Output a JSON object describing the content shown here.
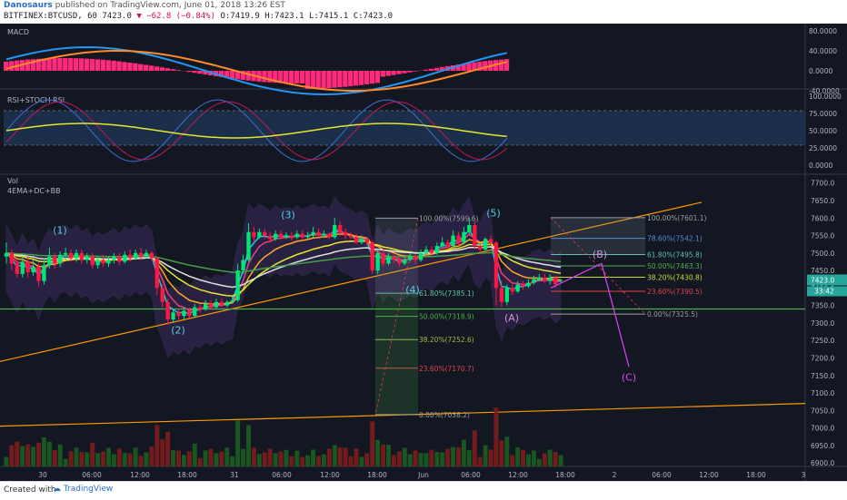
{
  "header": {
    "author": "Danosaurs",
    "published": "published on TradingView.com, June 01, 2018 13:26 EST",
    "symbol": "BITFINEX:BTCUSD, 60",
    "last": "7423.0",
    "change": "▼ −62.8 (−0.84%)",
    "ohlc": "O:7419.9  H:7423.1  L:7415.1  C:7423.0"
  },
  "footer": {
    "created": "Created with",
    "brand": "TradingView"
  },
  "panes": {
    "macd": "MACD",
    "rsi": "RSI+STOCH RSI",
    "vol": "Vol",
    "overlay": "4EMA+DC+BB"
  },
  "chart_data": {
    "type": "line",
    "title": "BITFINEX:BTCUSD, 60",
    "x_ticks": [
      "30",
      "06:00",
      "12:00",
      "18:00",
      "31",
      "06:00",
      "12:00",
      "18:00",
      "Jun",
      "06:00",
      "12:00",
      "18:00",
      "2",
      "06:00",
      "12:00",
      "18:00",
      "3"
    ],
    "price_ticks": [
      "7700.0",
      "7650.0",
      "7600.0",
      "7550.0",
      "7500.0",
      "7450.0",
      "7400.0",
      "7350.0",
      "7300.0",
      "7250.0",
      "7200.0",
      "7150.0",
      "7100.0",
      "7050.0",
      "7000.0",
      "6950.0",
      "6900.0"
    ],
    "price_range": [
      6890,
      7720
    ],
    "macd_ticks": [
      "80.0000",
      "40.0000",
      "0.0000",
      "-40.0000"
    ],
    "rsi_ticks": [
      "100.0000",
      "75.0000",
      "50.0000",
      "25.0000",
      "0.0000"
    ],
    "last_price_label": "7423.0",
    "time_label": "33:42",
    "wave_labels": [
      "(1)",
      "(2)",
      "(3)",
      "(4)",
      "(5)",
      "(A)",
      "(B)",
      "(C)"
    ],
    "fib_left": [
      {
        "label": "100.00%(7599.6)",
        "price": 7599.6,
        "color": "#9e9e9e"
      },
      {
        "label": "61.80%(7385.1)",
        "price": 7385.1,
        "color": "#5fc2a7"
      },
      {
        "label": "50.00%(7318.9)",
        "price": 7318.9,
        "color": "#4caf50"
      },
      {
        "label": "38.20%(7252.6)",
        "price": 7252.6,
        "color": "#9fb84a"
      },
      {
        "label": "23.60%(7170.7)",
        "price": 7170.7,
        "color": "#e0434b"
      },
      {
        "label": "0.00%(7038.2)",
        "price": 7038.2,
        "color": "#9e9e9e"
      }
    ],
    "fib_right": [
      {
        "label": "100.00%(7601.1)",
        "price": 7601.1,
        "color": "#9e9e9e"
      },
      {
        "label": "78.60%(7542.1)",
        "price": 7542.1,
        "color": "#4f8fd9"
      },
      {
        "label": "61.80%(7495.8)",
        "price": 7495.8,
        "color": "#5fc2a7"
      },
      {
        "label": "50.00%(7463.3)",
        "price": 7463.3,
        "color": "#4caf50"
      },
      {
        "label": "38.20%(7430.8)",
        "price": 7430.8,
        "color": "#cddc39"
      },
      {
        "label": "23.60%(7390.5)",
        "price": 7390.5,
        "color": "#e0434b"
      },
      {
        "label": "0.00%(7325.5)",
        "price": 7325.5,
        "color": "#9e9e9e"
      }
    ],
    "candles": [
      {
        "o": 7490,
        "c": 7500,
        "h": 7530,
        "l": 7470
      },
      {
        "o": 7500,
        "c": 7470,
        "h": 7510,
        "l": 7450
      },
      {
        "o": 7470,
        "c": 7440,
        "h": 7480,
        "l": 7430
      },
      {
        "o": 7440,
        "c": 7475,
        "h": 7490,
        "l": 7430
      },
      {
        "o": 7475,
        "c": 7445,
        "h": 7490,
        "l": 7430
      },
      {
        "o": 7445,
        "c": 7460,
        "h": 7480,
        "l": 7435
      },
      {
        "o": 7460,
        "c": 7420,
        "h": 7470,
        "l": 7405
      },
      {
        "o": 7420,
        "c": 7465,
        "h": 7485,
        "l": 7410
      },
      {
        "o": 7465,
        "c": 7490,
        "h": 7515,
        "l": 7455
      },
      {
        "o": 7490,
        "c": 7470,
        "h": 7500,
        "l": 7455
      },
      {
        "o": 7470,
        "c": 7495,
        "h": 7505,
        "l": 7460
      },
      {
        "o": 7495,
        "c": 7500,
        "h": 7515,
        "l": 7480
      },
      {
        "o": 7500,
        "c": 7485,
        "h": 7510,
        "l": 7475
      },
      {
        "o": 7485,
        "c": 7500,
        "h": 7510,
        "l": 7475
      },
      {
        "o": 7500,
        "c": 7480,
        "h": 7510,
        "l": 7470
      },
      {
        "o": 7480,
        "c": 7490,
        "h": 7500,
        "l": 7470
      },
      {
        "o": 7490,
        "c": 7465,
        "h": 7500,
        "l": 7455
      },
      {
        "o": 7465,
        "c": 7480,
        "h": 7490,
        "l": 7455
      },
      {
        "o": 7480,
        "c": 7470,
        "h": 7495,
        "l": 7460
      },
      {
        "o": 7470,
        "c": 7480,
        "h": 7490,
        "l": 7460
      },
      {
        "o": 7480,
        "c": 7490,
        "h": 7500,
        "l": 7470
      },
      {
        "o": 7490,
        "c": 7475,
        "h": 7500,
        "l": 7465
      },
      {
        "o": 7475,
        "c": 7495,
        "h": 7505,
        "l": 7470
      },
      {
        "o": 7495,
        "c": 7485,
        "h": 7510,
        "l": 7475
      },
      {
        "o": 7485,
        "c": 7500,
        "h": 7510,
        "l": 7480
      },
      {
        "o": 7500,
        "c": 7490,
        "h": 7515,
        "l": 7480
      },
      {
        "o": 7490,
        "c": 7500,
        "h": 7510,
        "l": 7485
      },
      {
        "o": 7500,
        "c": 7485,
        "h": 7505,
        "l": 7480
      },
      {
        "o": 7485,
        "c": 7400,
        "h": 7490,
        "l": 7380
      },
      {
        "o": 7400,
        "c": 7360,
        "h": 7410,
        "l": 7345
      },
      {
        "o": 7360,
        "c": 7310,
        "h": 7370,
        "l": 7295
      },
      {
        "o": 7310,
        "c": 7330,
        "h": 7340,
        "l": 7300
      },
      {
        "o": 7330,
        "c": 7320,
        "h": 7340,
        "l": 7310
      },
      {
        "o": 7320,
        "c": 7335,
        "h": 7345,
        "l": 7310
      },
      {
        "o": 7335,
        "c": 7320,
        "h": 7345,
        "l": 7315
      },
      {
        "o": 7320,
        "c": 7345,
        "h": 7355,
        "l": 7315
      },
      {
        "o": 7345,
        "c": 7340,
        "h": 7355,
        "l": 7330
      },
      {
        "o": 7340,
        "c": 7355,
        "h": 7365,
        "l": 7335
      },
      {
        "o": 7355,
        "c": 7345,
        "h": 7365,
        "l": 7340
      },
      {
        "o": 7345,
        "c": 7360,
        "h": 7370,
        "l": 7340
      },
      {
        "o": 7360,
        "c": 7350,
        "h": 7370,
        "l": 7345
      },
      {
        "o": 7350,
        "c": 7360,
        "h": 7365,
        "l": 7345
      },
      {
        "o": 7360,
        "c": 7365,
        "h": 7375,
        "l": 7355
      },
      {
        "o": 7365,
        "c": 7450,
        "h": 7470,
        "l": 7360
      },
      {
        "o": 7450,
        "c": 7480,
        "h": 7495,
        "l": 7440
      },
      {
        "o": 7480,
        "c": 7560,
        "h": 7585,
        "l": 7475
      },
      {
        "o": 7560,
        "c": 7545,
        "h": 7575,
        "l": 7530
      },
      {
        "o": 7545,
        "c": 7560,
        "h": 7570,
        "l": 7540
      },
      {
        "o": 7560,
        "c": 7550,
        "h": 7570,
        "l": 7540
      },
      {
        "o": 7550,
        "c": 7540,
        "h": 7560,
        "l": 7530
      },
      {
        "o": 7540,
        "c": 7555,
        "h": 7565,
        "l": 7535
      },
      {
        "o": 7555,
        "c": 7545,
        "h": 7565,
        "l": 7540
      },
      {
        "o": 7545,
        "c": 7550,
        "h": 7560,
        "l": 7540
      },
      {
        "o": 7550,
        "c": 7545,
        "h": 7560,
        "l": 7535
      },
      {
        "o": 7545,
        "c": 7555,
        "h": 7565,
        "l": 7540
      },
      {
        "o": 7555,
        "c": 7545,
        "h": 7565,
        "l": 7540
      },
      {
        "o": 7545,
        "c": 7550,
        "h": 7560,
        "l": 7540
      },
      {
        "o": 7550,
        "c": 7560,
        "h": 7575,
        "l": 7545
      },
      {
        "o": 7560,
        "c": 7550,
        "h": 7570,
        "l": 7545
      },
      {
        "o": 7550,
        "c": 7555,
        "h": 7565,
        "l": 7545
      },
      {
        "o": 7555,
        "c": 7545,
        "h": 7560,
        "l": 7540
      },
      {
        "o": 7545,
        "c": 7580,
        "h": 7600,
        "l": 7540
      },
      {
        "o": 7580,
        "c": 7560,
        "h": 7590,
        "l": 7550
      },
      {
        "o": 7560,
        "c": 7550,
        "h": 7570,
        "l": 7540
      },
      {
        "o": 7550,
        "c": 7545,
        "h": 7560,
        "l": 7540
      },
      {
        "o": 7545,
        "c": 7530,
        "h": 7555,
        "l": 7525
      },
      {
        "o": 7530,
        "c": 7540,
        "h": 7550,
        "l": 7525
      },
      {
        "o": 7540,
        "c": 7530,
        "h": 7545,
        "l": 7520
      },
      {
        "o": 7530,
        "c": 7450,
        "h": 7535,
        "l": 7440
      },
      {
        "o": 7450,
        "c": 7500,
        "h": 7510,
        "l": 7440
      },
      {
        "o": 7500,
        "c": 7470,
        "h": 7510,
        "l": 7460
      },
      {
        "o": 7470,
        "c": 7490,
        "h": 7500,
        "l": 7465
      },
      {
        "o": 7490,
        "c": 7480,
        "h": 7495,
        "l": 7470
      },
      {
        "o": 7480,
        "c": 7470,
        "h": 7490,
        "l": 7460
      },
      {
        "o": 7470,
        "c": 7480,
        "h": 7490,
        "l": 7465
      },
      {
        "o": 7480,
        "c": 7490,
        "h": 7500,
        "l": 7475
      },
      {
        "o": 7490,
        "c": 7480,
        "h": 7495,
        "l": 7470
      },
      {
        "o": 7480,
        "c": 7500,
        "h": 7510,
        "l": 7475
      },
      {
        "o": 7500,
        "c": 7510,
        "h": 7520,
        "l": 7495
      },
      {
        "o": 7510,
        "c": 7500,
        "h": 7520,
        "l": 7495
      },
      {
        "o": 7500,
        "c": 7520,
        "h": 7530,
        "l": 7495
      },
      {
        "o": 7520,
        "c": 7530,
        "h": 7545,
        "l": 7515
      },
      {
        "o": 7530,
        "c": 7520,
        "h": 7540,
        "l": 7515
      },
      {
        "o": 7520,
        "c": 7550,
        "h": 7565,
        "l": 7515
      },
      {
        "o": 7550,
        "c": 7530,
        "h": 7560,
        "l": 7520
      },
      {
        "o": 7530,
        "c": 7560,
        "h": 7575,
        "l": 7525
      },
      {
        "o": 7560,
        "c": 7580,
        "h": 7600,
        "l": 7555
      },
      {
        "o": 7580,
        "c": 7520,
        "h": 7590,
        "l": 7510
      },
      {
        "o": 7520,
        "c": 7510,
        "h": 7525,
        "l": 7500
      },
      {
        "o": 7510,
        "c": 7540,
        "h": 7545,
        "l": 7505
      },
      {
        "o": 7540,
        "c": 7530,
        "h": 7550,
        "l": 7520
      },
      {
        "o": 7530,
        "c": 7400,
        "h": 7535,
        "l": 7350
      },
      {
        "o": 7400,
        "c": 7360,
        "h": 7420,
        "l": 7345
      },
      {
        "o": 7360,
        "c": 7400,
        "h": 7410,
        "l": 7350
      },
      {
        "o": 7400,
        "c": 7390,
        "h": 7410,
        "l": 7380
      },
      {
        "o": 7390,
        "c": 7410,
        "h": 7420,
        "l": 7385
      },
      {
        "o": 7410,
        "c": 7405,
        "h": 7420,
        "l": 7395
      },
      {
        "o": 7405,
        "c": 7415,
        "h": 7425,
        "l": 7400
      },
      {
        "o": 7415,
        "c": 7425,
        "h": 7435,
        "l": 7410
      },
      {
        "o": 7425,
        "c": 7430,
        "h": 7440,
        "l": 7420
      },
      {
        "o": 7430,
        "c": 7420,
        "h": 7440,
        "l": 7415
      },
      {
        "o": 7420,
        "c": 7430,
        "h": 7440,
        "l": 7410
      },
      {
        "o": 7430,
        "c": 7410,
        "h": 7435,
        "l": 7400
      },
      {
        "o": 7419.9,
        "c": 7423.0,
        "h": 7423.1,
        "l": 7415.1
      }
    ]
  }
}
